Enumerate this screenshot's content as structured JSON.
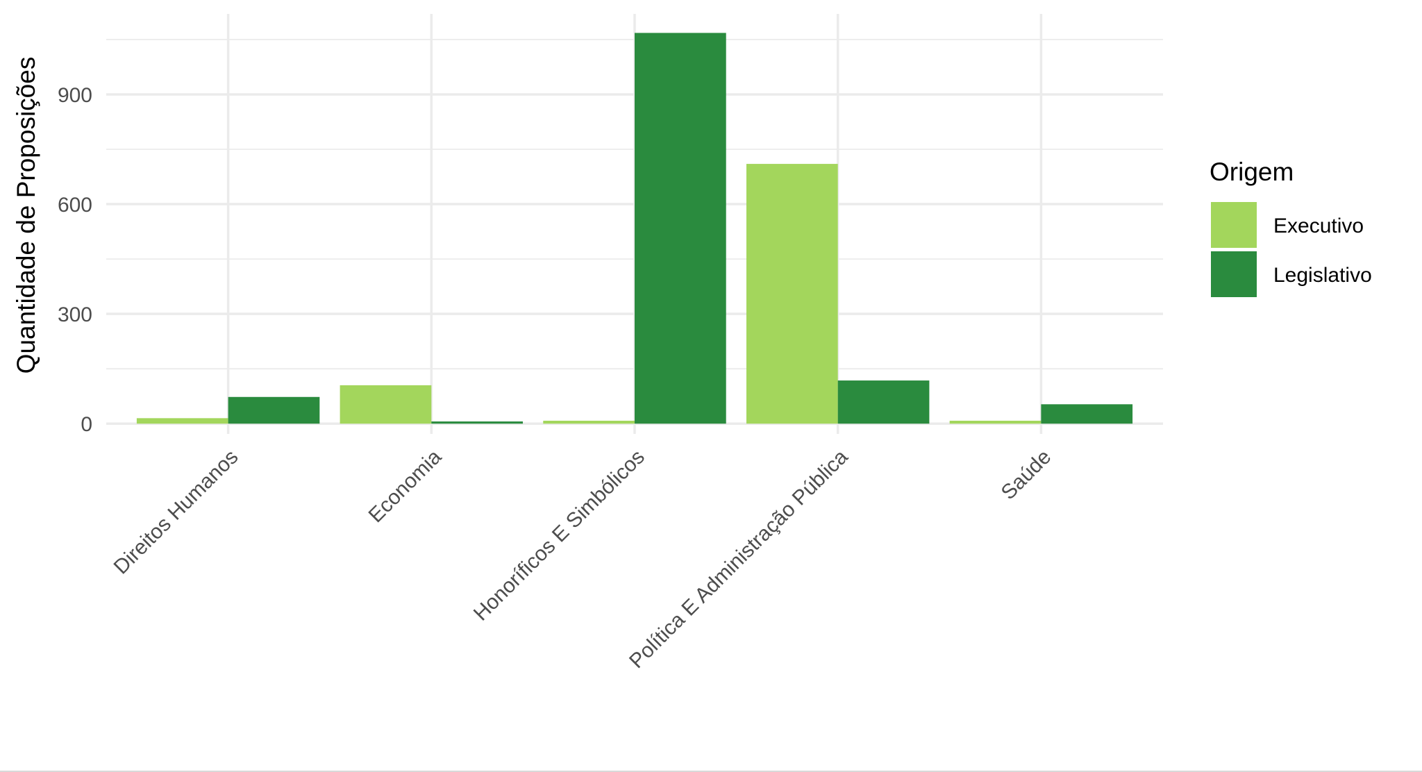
{
  "chart_data": {
    "type": "bar",
    "title": "",
    "xlabel": "",
    "ylabel": "Quantidade de Proposições",
    "categories": [
      "Direitos Humanos",
      "Economia",
      "Honoríficos E Simbólicos",
      "Política E Administração Pública",
      "Saúde"
    ],
    "series": [
      {
        "name": "Executivo",
        "color": "#a3d65c",
        "values": [
          15,
          105,
          8,
          710,
          8
        ]
      },
      {
        "name": "Legislativo",
        "color": "#2a8b3e",
        "values": [
          73,
          6,
          1068,
          118,
          53
        ]
      }
    ],
    "yticks": [
      0,
      300,
      600,
      900
    ],
    "ylim": [
      -28,
      1120
    ],
    "grid": true,
    "legend": {
      "title": "Origem",
      "position": "right"
    }
  }
}
